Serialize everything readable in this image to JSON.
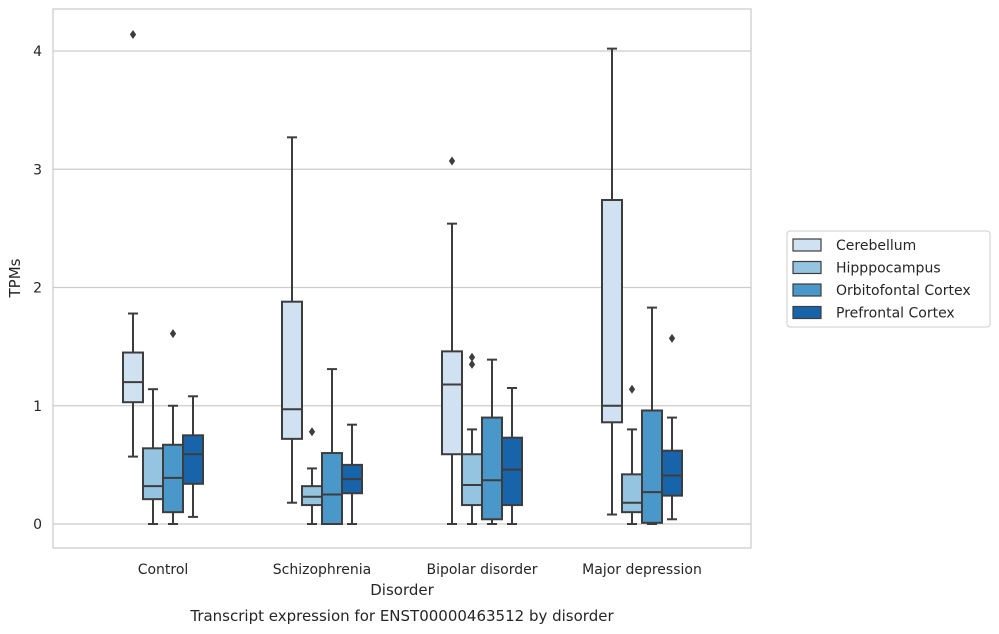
{
  "chart_data": {
    "type": "boxplot",
    "title": "Transcript expression for ENST00000463512 by disorder",
    "xlabel": "Disorder",
    "ylabel": "TPMs",
    "ylim": [
      -0.2,
      4.35
    ],
    "yticks": [
      0,
      1,
      2,
      3,
      4
    ],
    "grid": "horizontal",
    "legend_position": "right",
    "categories": [
      "Control",
      "Schizophrenia",
      "Bipolar disorder",
      "Major depression"
    ],
    "series": [
      {
        "name": "Cerebellum",
        "color": "#d0e1f2",
        "boxes": [
          {
            "whislo": 0.57,
            "q1": 1.03,
            "med": 1.2,
            "q3": 1.45,
            "whishi": 1.78,
            "fliers": [
              4.14
            ]
          },
          {
            "whislo": 0.18,
            "q1": 0.72,
            "med": 0.97,
            "q3": 1.88,
            "whishi": 3.27,
            "fliers": []
          },
          {
            "whislo": 0.0,
            "q1": 0.59,
            "med": 1.18,
            "q3": 1.46,
            "whishi": 2.54,
            "fliers": [
              3.07
            ]
          },
          {
            "whislo": 0.08,
            "q1": 0.86,
            "med": 1.0,
            "q3": 2.74,
            "whishi": 4.02,
            "fliers": []
          }
        ]
      },
      {
        "name": "Hipppocampus",
        "color": "#94c4df",
        "boxes": [
          {
            "whislo": 0.0,
            "q1": 0.21,
            "med": 0.32,
            "q3": 0.64,
            "whishi": 1.14,
            "fliers": []
          },
          {
            "whislo": 0.0,
            "q1": 0.16,
            "med": 0.23,
            "q3": 0.32,
            "whishi": 0.47,
            "fliers": [
              0.78
            ]
          },
          {
            "whislo": 0.0,
            "q1": 0.16,
            "med": 0.33,
            "q3": 0.59,
            "whishi": 0.8,
            "fliers": [
              1.35,
              1.41
            ]
          },
          {
            "whislo": 0.0,
            "q1": 0.1,
            "med": 0.18,
            "q3": 0.42,
            "whishi": 0.8,
            "fliers": [
              1.14
            ]
          }
        ]
      },
      {
        "name": "Orbitofontal Cortex",
        "color": "#4a98c9",
        "boxes": [
          {
            "whislo": 0.0,
            "q1": 0.1,
            "med": 0.39,
            "q3": 0.67,
            "whishi": 1.0,
            "fliers": [
              1.61
            ]
          },
          {
            "whislo": 0.0,
            "q1": 0.0,
            "med": 0.25,
            "q3": 0.6,
            "whishi": 1.31,
            "fliers": []
          },
          {
            "whislo": 0.0,
            "q1": 0.04,
            "med": 0.37,
            "q3": 0.9,
            "whishi": 1.39,
            "fliers": []
          },
          {
            "whislo": 0.0,
            "q1": 0.01,
            "med": 0.27,
            "q3": 0.96,
            "whishi": 1.83,
            "fliers": []
          }
        ]
      },
      {
        "name": "Prefrontal Cortex",
        "color": "#1764ab",
        "boxes": [
          {
            "whislo": 0.06,
            "q1": 0.34,
            "med": 0.59,
            "q3": 0.75,
            "whishi": 1.08,
            "fliers": []
          },
          {
            "whislo": 0.0,
            "q1": 0.26,
            "med": 0.38,
            "q3": 0.5,
            "whishi": 0.84,
            "fliers": []
          },
          {
            "whislo": 0.0,
            "q1": 0.16,
            "med": 0.46,
            "q3": 0.73,
            "whishi": 1.15,
            "fliers": []
          },
          {
            "whislo": 0.04,
            "q1": 0.24,
            "med": 0.41,
            "q3": 0.62,
            "whishi": 0.9,
            "fliers": [
              1.57
            ]
          }
        ]
      }
    ]
  }
}
